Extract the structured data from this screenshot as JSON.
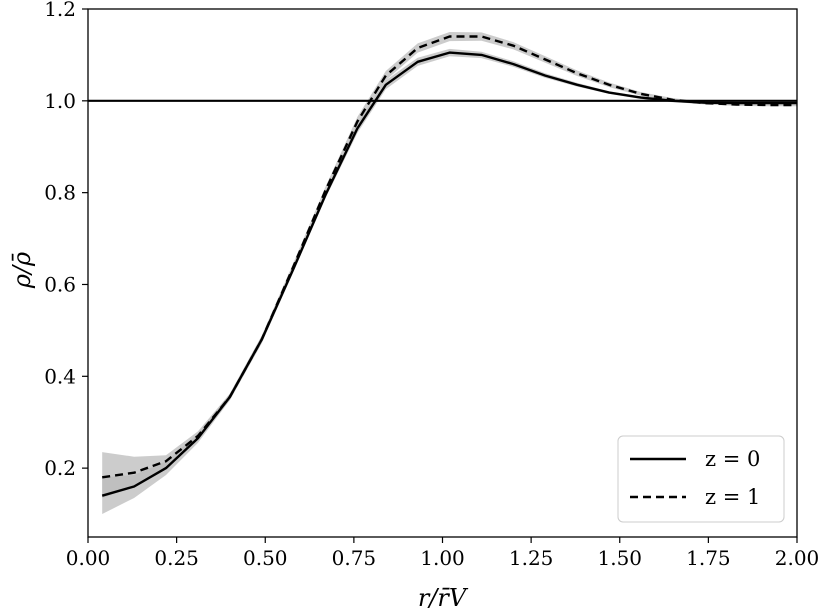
{
  "chart_data": {
    "type": "line",
    "title": "",
    "xlabel": "r/r̄V",
    "ylabel": "ρ/ρ̄",
    "xlim": [
      0.0,
      2.0
    ],
    "ylim": [
      0.05,
      1.2
    ],
    "xticks": [
      "0.00",
      "0.25",
      "0.50",
      "0.75",
      "1.00",
      "1.25",
      "1.50",
      "1.75",
      "2.00"
    ],
    "yticks": [
      "0.2",
      "0.4",
      "0.6",
      "0.8",
      "1.0",
      "1.2"
    ],
    "grid": false,
    "legend_position": "lower-right",
    "reference_line": {
      "y": 1.0,
      "color": "#000000"
    },
    "band_color": "#bbbbbb",
    "series": [
      {
        "name": "z = 0",
        "style": "solid",
        "color": "#000000",
        "x": [
          0.04,
          0.13,
          0.22,
          0.31,
          0.4,
          0.49,
          0.58,
          0.67,
          0.76,
          0.84,
          0.93,
          1.02,
          1.11,
          1.2,
          1.29,
          1.38,
          1.47,
          1.56,
          1.65,
          1.74,
          1.83,
          1.92,
          2.0
        ],
        "y": [
          0.14,
          0.16,
          0.2,
          0.265,
          0.355,
          0.48,
          0.635,
          0.795,
          0.94,
          1.035,
          1.085,
          1.105,
          1.1,
          1.08,
          1.055,
          1.035,
          1.018,
          1.007,
          1.0,
          0.996,
          0.995,
          0.995,
          0.995
        ],
        "lower": [
          0.1,
          0.135,
          0.185,
          0.255,
          0.348,
          0.472,
          0.628,
          0.788,
          0.93,
          1.025,
          1.076,
          1.097,
          1.093,
          1.074,
          1.05,
          1.031,
          1.015,
          1.004,
          0.997,
          0.993,
          0.992,
          0.992,
          0.992
        ],
        "upper": [
          0.18,
          0.185,
          0.215,
          0.275,
          0.362,
          0.488,
          0.642,
          0.802,
          0.95,
          1.045,
          1.094,
          1.113,
          1.107,
          1.086,
          1.06,
          1.039,
          1.021,
          1.01,
          1.003,
          0.999,
          0.998,
          0.998,
          0.998
        ]
      },
      {
        "name": "z = 1",
        "style": "dashed",
        "color": "#000000",
        "x": [
          0.04,
          0.13,
          0.22,
          0.31,
          0.4,
          0.49,
          0.58,
          0.67,
          0.76,
          0.84,
          0.93,
          1.02,
          1.11,
          1.2,
          1.29,
          1.38,
          1.47,
          1.56,
          1.65,
          1.74,
          1.83,
          1.92,
          2.0
        ],
        "y": [
          0.18,
          0.19,
          0.215,
          0.27,
          0.355,
          0.48,
          0.64,
          0.805,
          0.955,
          1.055,
          1.115,
          1.14,
          1.14,
          1.12,
          1.09,
          1.06,
          1.035,
          1.015,
          1.002,
          0.995,
          0.992,
          0.991,
          0.991
        ],
        "lower": [
          0.135,
          0.16,
          0.2,
          0.262,
          0.348,
          0.472,
          0.632,
          0.797,
          0.945,
          1.045,
          1.105,
          1.13,
          1.131,
          1.112,
          1.083,
          1.054,
          1.03,
          1.011,
          0.998,
          0.992,
          0.989,
          0.988,
          0.988
        ],
        "upper": [
          0.235,
          0.225,
          0.228,
          0.28,
          0.362,
          0.488,
          0.648,
          0.813,
          0.965,
          1.065,
          1.125,
          1.15,
          1.149,
          1.128,
          1.097,
          1.066,
          1.04,
          1.019,
          1.006,
          0.998,
          0.995,
          0.994,
          0.994
        ]
      }
    ]
  }
}
